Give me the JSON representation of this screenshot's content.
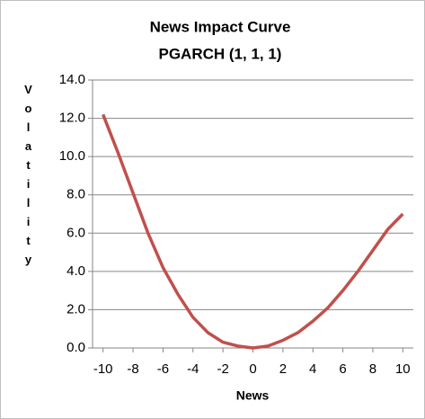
{
  "chart_data": {
    "type": "line",
    "title": "News Impact Curve",
    "subtitle": "PGARCH (1, 1, 1)",
    "x_label": "News",
    "y_label": "Volatility",
    "x": [
      -10,
      -9,
      -8,
      -7,
      -6,
      -5,
      -4,
      -3,
      -2,
      -1,
      0,
      1,
      2,
      3,
      4,
      5,
      6,
      7,
      8,
      9,
      10
    ],
    "series": [
      {
        "name": "News Impact",
        "color": "#c0504d",
        "values": [
          12.2,
          10.2,
          8.1,
          6.0,
          4.2,
          2.8,
          1.6,
          0.8,
          0.3,
          0.1,
          0.0,
          0.1,
          0.4,
          0.8,
          1.4,
          2.1,
          3.0,
          4.0,
          5.1,
          6.2,
          7.0
        ]
      }
    ],
    "xlim": [
      -10.7,
      10.7
    ],
    "xticks": [
      -10,
      -8,
      -6,
      -4,
      -2,
      0,
      2,
      4,
      6,
      8,
      10
    ],
    "ylim": [
      0,
      14
    ],
    "yticks": [
      {
        "value": 0,
        "label": "0.0"
      },
      {
        "value": 2,
        "label": "2.0"
      },
      {
        "value": 4,
        "label": "4.0"
      },
      {
        "value": 6,
        "label": "6.0"
      },
      {
        "value": 8,
        "label": "8.0"
      },
      {
        "value": 10,
        "label": "10.0"
      },
      {
        "value": 12,
        "label": "12.0"
      },
      {
        "value": 14,
        "label": "14.0"
      }
    ],
    "grid": true
  }
}
